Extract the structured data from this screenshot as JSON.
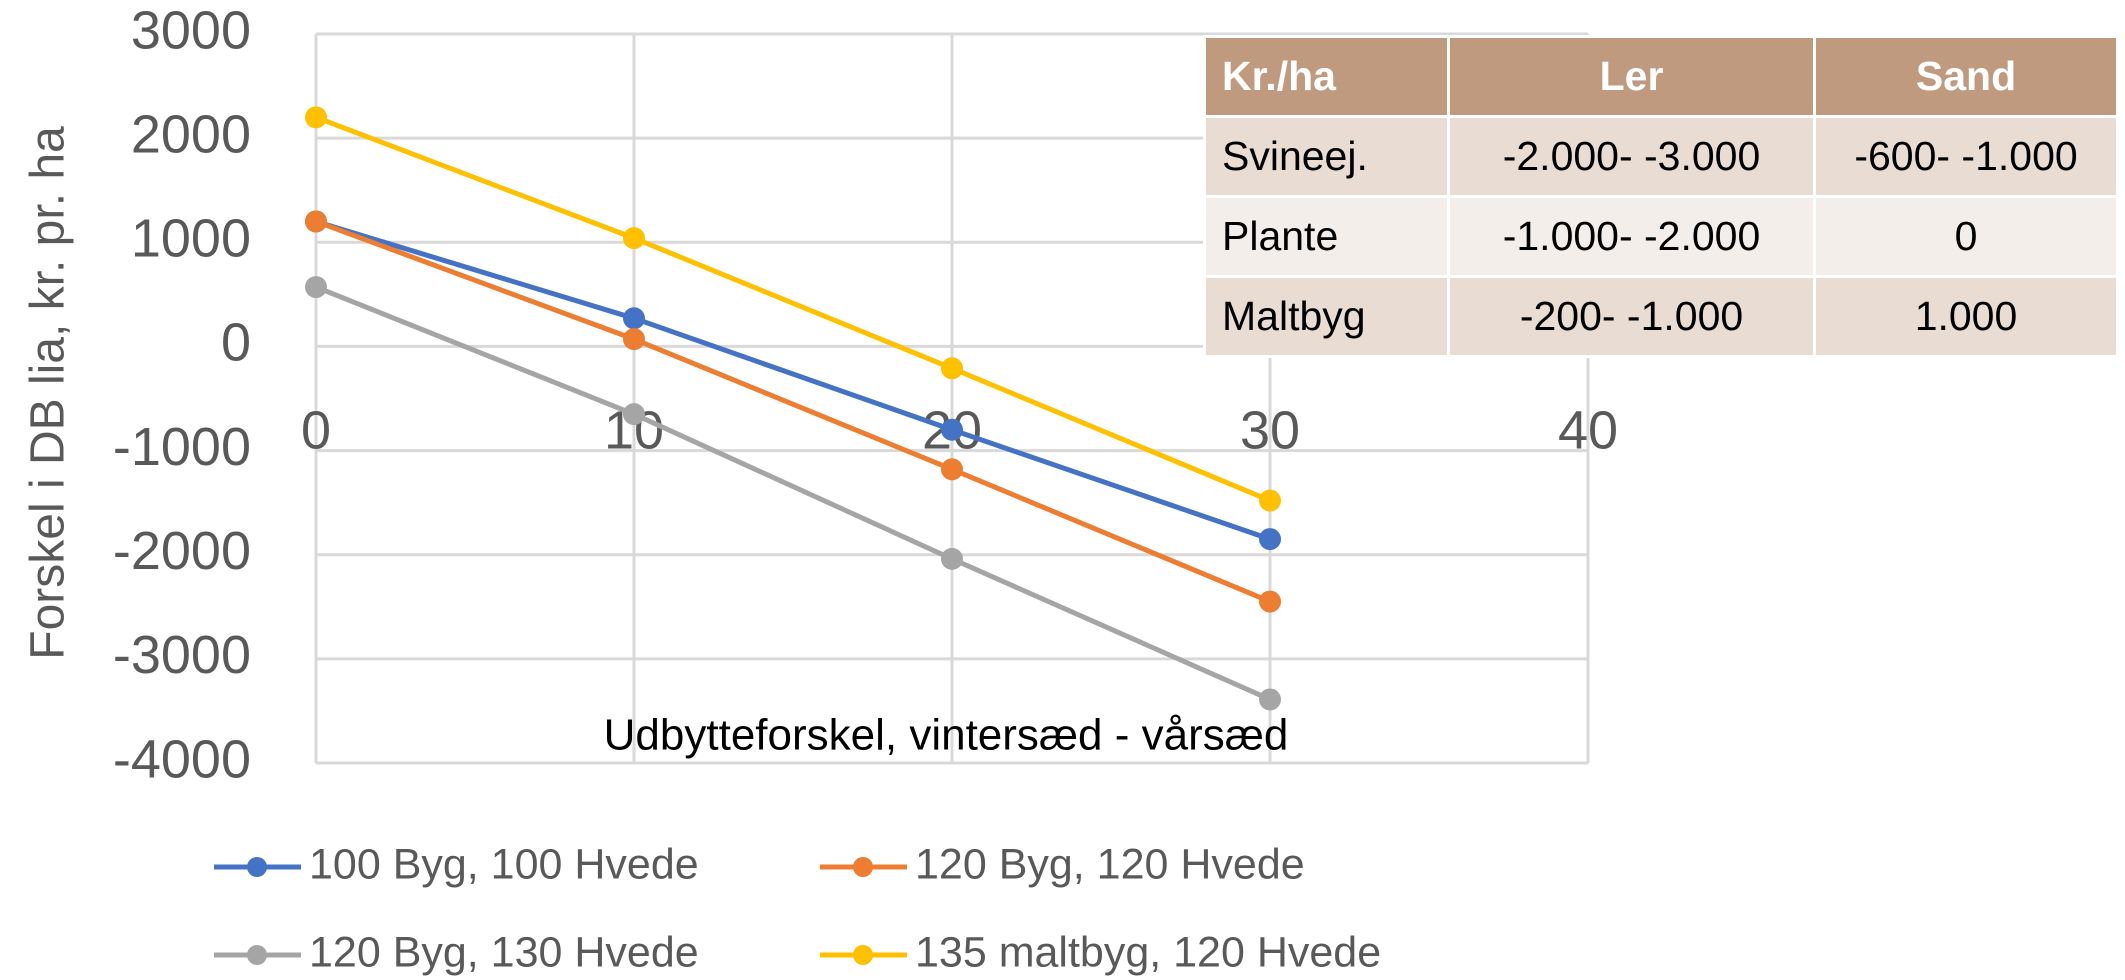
{
  "chart_data": {
    "type": "line",
    "xlabel": "Udbytteforskel, vintersæd - vårsæd",
    "ylabel": "Forskel i DB lia, kr. pr. ha",
    "x": [
      0,
      10,
      20,
      30
    ],
    "series": [
      {
        "name": "100 Byg, 100 Hvede",
        "color": "#4472c4",
        "values": [
          1200,
          270,
          -800,
          -1850
        ]
      },
      {
        "name": "120 Byg, 120 Hvede",
        "color": "#ed7d31",
        "values": [
          1200,
          70,
          -1180,
          -2450
        ]
      },
      {
        "name": "120 Byg, 130 Hvede",
        "color": "#a5a5a5",
        "values": [
          570,
          -650,
          -2040,
          -3390
        ]
      },
      {
        "name": "135 maltbyg, 120 Hvede",
        "color": "#ffc000",
        "values": [
          2200,
          1040,
          -210,
          -1480
        ]
      }
    ],
    "xlim": [
      0,
      40
    ],
    "xticks": [
      0,
      10,
      20,
      30,
      40
    ],
    "ylim": [
      -4000,
      3000
    ],
    "yticks": [
      -4000,
      -3000,
      -2000,
      -1000,
      0,
      1000,
      2000,
      3000
    ],
    "grid": true,
    "legend": "bottom"
  },
  "table": {
    "header": [
      "Kr./ha",
      "Ler",
      "Sand"
    ],
    "rows": [
      [
        "Svineej.",
        "-2.000- -3.000",
        "-600- -1.000"
      ],
      [
        "Plante",
        "-1.000- -2.000",
        "0"
      ],
      [
        "Maltbyg",
        "-200- -1.000",
        "1.000"
      ]
    ]
  }
}
